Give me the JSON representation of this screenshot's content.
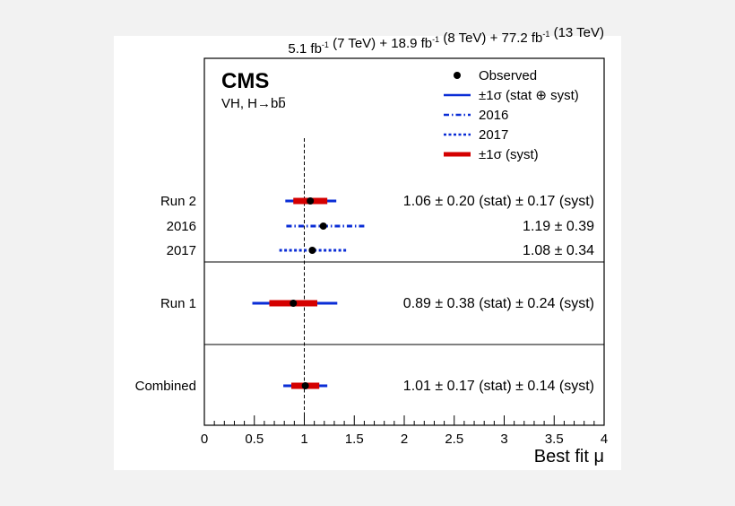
{
  "header": {
    "lumi_parts": [
      {
        "text": "5.1 fb",
        "sup": "-1"
      },
      {
        "text": " (7 TeV) + 18.9 fb",
        "sup": "-1"
      },
      {
        "text": " (8 TeV) + 77.2 fb",
        "sup": "-1"
      },
      {
        "text": " (13 TeV)",
        "sup": ""
      }
    ]
  },
  "labels": {
    "experiment": "CMS",
    "process_prefix": "VH, H",
    "arrow": "→",
    "process_b": "b",
    "process_bbar": "b"
  },
  "legend": [
    {
      "label": "Observed",
      "style": "marker",
      "color": "#000000"
    },
    {
      "label": "±1σ (stat ⊕ syst)",
      "style": "solid",
      "color": "#0a2dd6"
    },
    {
      "label": "2016",
      "style": "dashdot",
      "color": "#0a2dd6"
    },
    {
      "label": "2017",
      "style": "dotted",
      "color": "#0a2dd6"
    },
    {
      "label": "±1σ (syst)",
      "style": "thick",
      "color": "#d40000"
    }
  ],
  "chart_data": {
    "type": "scatter",
    "xlabel": "Best fit μ",
    "xlim": [
      0,
      4
    ],
    "xticks": [
      0,
      0.5,
      1,
      1.5,
      2,
      2.5,
      3,
      3.5,
      4
    ],
    "xtick_labels": [
      "0",
      "0.5",
      "1",
      "1.5",
      "2",
      "2.5",
      "3",
      "3.5",
      "4"
    ],
    "reference_line": 1,
    "group_separators_after_rows": [
      2,
      3
    ],
    "rows": [
      {
        "name": "Run 2",
        "mu": 1.06,
        "total": [
          -0.25,
          0.26
        ],
        "syst": [
          -0.17,
          0.17
        ],
        "line_style": "solid",
        "annotation": "1.06 ± 0.20 (stat) ± 0.17 (syst)"
      },
      {
        "name": "2016",
        "mu": 1.19,
        "total": [
          -0.37,
          0.41
        ],
        "syst": null,
        "line_style": "dashdot",
        "annotation": "1.19 ± 0.39"
      },
      {
        "name": "2017",
        "mu": 1.08,
        "total": [
          -0.33,
          0.35
        ],
        "syst": null,
        "line_style": "dotted",
        "annotation": "1.08 ± 0.34"
      },
      {
        "name": "Run 1",
        "mu": 0.89,
        "total": [
          -0.41,
          0.44
        ],
        "syst": [
          -0.24,
          0.24
        ],
        "line_style": "solid",
        "annotation": "0.89 ± 0.38 (stat) ± 0.24 (syst)"
      },
      {
        "name": "Combined",
        "mu": 1.01,
        "total": [
          -0.22,
          0.22
        ],
        "syst": [
          -0.14,
          0.14
        ],
        "line_style": "solid",
        "annotation": "1.01 ± 0.17 (stat) ± 0.14 (syst)"
      }
    ]
  }
}
